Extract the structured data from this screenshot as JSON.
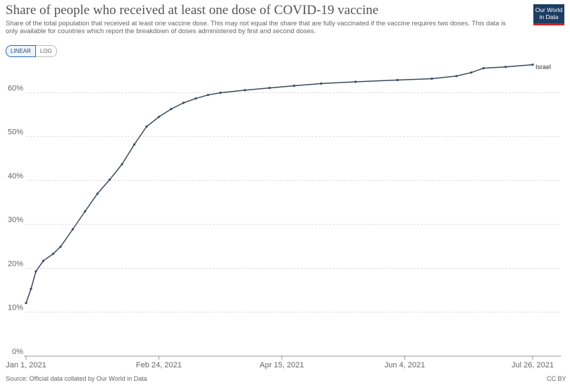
{
  "chart_data": {
    "type": "line",
    "title": "Share of people who received at least one dose of COVID-19 vaccine",
    "subtitle": "Share of the total population that received at least one vaccine dose. This may not equal the share that are fully vaccinated if the vaccine requires two doses. This data is only available for countries which report the breakdown of doses administered by first and second doses.",
    "scale_buttons": [
      "LINEAR",
      "LOG"
    ],
    "logo": [
      "Our World",
      "in Data"
    ],
    "source": "Source: Official data collated by Our World in Data",
    "license": "CC BY",
    "x": [
      "2021-01-01",
      "2021-01-03",
      "2021-01-05",
      "2021-01-08",
      "2021-01-12",
      "2021-01-15",
      "2021-01-20",
      "2021-01-25",
      "2021-01-30",
      "2021-02-04",
      "2021-02-09",
      "2021-02-14",
      "2021-02-19",
      "2021-02-24",
      "2021-03-01",
      "2021-03-06",
      "2021-03-11",
      "2021-03-16",
      "2021-03-21",
      "2021-03-31",
      "2021-04-10",
      "2021-04-20",
      "2021-05-01",
      "2021-05-15",
      "2021-06-01",
      "2021-06-15",
      "2021-06-25",
      "2021-07-01",
      "2021-07-06",
      "2021-07-15",
      "2021-07-26"
    ],
    "series": [
      {
        "name": "Israel",
        "color": "#3a4a5f",
        "values": [
          12.1,
          15.3,
          19.3,
          21.7,
          23.3,
          24.9,
          28.9,
          33.0,
          37.0,
          40.2,
          43.7,
          48.2,
          52.3,
          54.5,
          56.3,
          57.7,
          58.7,
          59.5,
          60.0,
          60.6,
          61.1,
          61.6,
          62.1,
          62.5,
          62.9,
          63.2,
          63.8,
          64.6,
          65.6,
          65.9,
          66.4
        ]
      }
    ],
    "xlim": [
      "2021-01-01",
      "2021-07-26"
    ],
    "xticks": [
      {
        "value": "2021-01-01",
        "label": "Jan 1, 2021"
      },
      {
        "value": "2021-02-24",
        "label": "Feb 24, 2021"
      },
      {
        "value": "2021-04-15",
        "label": "Apr 15, 2021"
      },
      {
        "value": "2021-06-04",
        "label": "Jun 4, 2021"
      },
      {
        "value": "2021-07-26",
        "label": "Jul 26, 2021"
      }
    ],
    "ylim": [
      0,
      67
    ],
    "yticks": [
      {
        "value": 0,
        "label": "0%"
      },
      {
        "value": 10,
        "label": "10%"
      },
      {
        "value": 20,
        "label": "20%"
      },
      {
        "value": 30,
        "label": "30%"
      },
      {
        "value": 40,
        "label": "40%"
      },
      {
        "value": 50,
        "label": "50%"
      },
      {
        "value": 60,
        "label": "60%"
      }
    ],
    "grid": true
  }
}
